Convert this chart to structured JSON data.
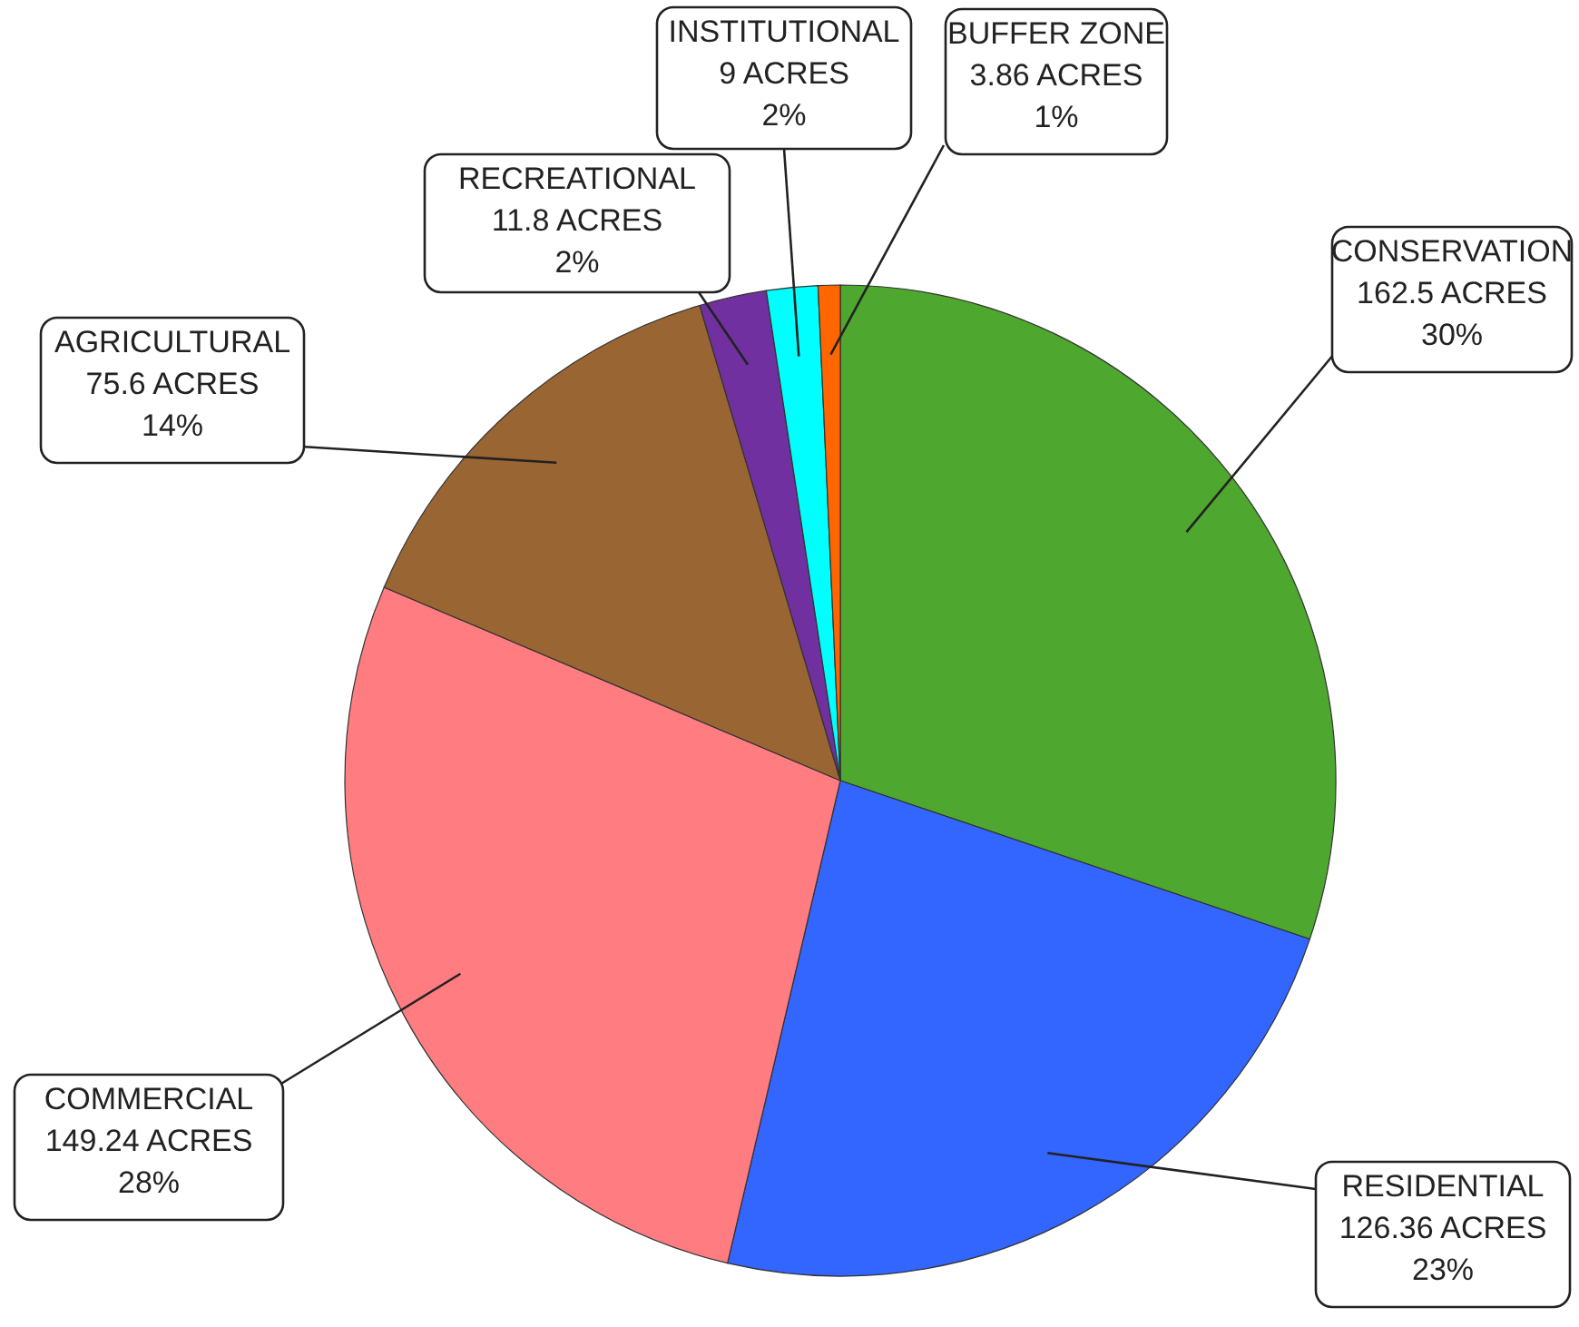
{
  "chart_data": {
    "type": "pie",
    "categories": [
      "CONSERVATION",
      "RESIDENTIAL",
      "COMMERCIAL",
      "AGRICULTURAL",
      "RECREATIONAL",
      "INSTITUTIONAL",
      "BUFFER ZONE"
    ],
    "values": [
      162.5,
      126.36,
      149.24,
      75.6,
      11.8,
      9,
      3.86
    ],
    "value_labels": [
      "162.5 ACRES\n30%",
      "126.36 ACRES\n23%",
      "149.24 ACRES\n28%",
      "75.6 ACRES\n14%",
      "11.8 ACRES\n2%",
      "9 ACRES\n2%",
      "3.86 ACRES\n1%"
    ],
    "colors": [
      "#4ea72e",
      "#3366ff",
      "#ff7c80",
      "#996633",
      "#7030a0",
      "#00ffff",
      "#ff6600"
    ]
  }
}
